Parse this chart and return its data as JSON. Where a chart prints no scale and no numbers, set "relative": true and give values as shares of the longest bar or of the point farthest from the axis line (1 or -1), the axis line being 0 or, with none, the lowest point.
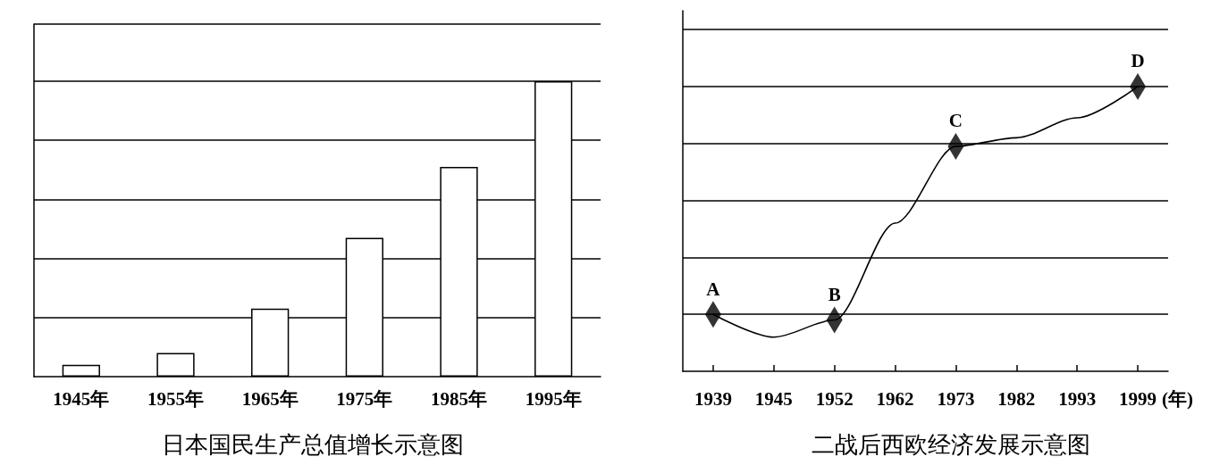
{
  "chart_data": [
    {
      "type": "bar",
      "title": "日本国民生产总值增长示意图",
      "categories": [
        "1945年",
        "1955年",
        "1965年",
        "1975年",
        "1985年",
        "1995年"
      ],
      "values": [
        0.04,
        0.08,
        0.23,
        0.47,
        0.71,
        1
      ],
      "color": "#ffffff",
      "relative": true,
      "grid": "y",
      "tick_labels": "x"
    },
    {
      "type": "line",
      "title": "二战后西欧经济发展示意图",
      "xlabel": "(年)",
      "categories": [
        "1939",
        "1945",
        "1952",
        "1962",
        "1973",
        "1982",
        "1993",
        "1999"
      ],
      "series": [
        {
          "color": "#000000",
          "values": [
            0.2,
            0.12,
            0.18,
            0.52,
            0.79,
            0.82,
            0.89,
            1
          ]
        },
        {
          "type": "scatter",
          "color": "#000000",
          "values": [
            0.2,
            null,
            0.18,
            null,
            0.79,
            null,
            null,
            1
          ],
          "marker": "diamond"
        }
      ],
      "annotations": [
        {
          "text": "A",
          "x": "1939",
          "y": 0.2
        },
        {
          "text": "B",
          "x": "1952",
          "y": 0.18
        },
        {
          "text": "C",
          "x": "1973",
          "y": 0.79
        },
        {
          "text": "D",
          "x": "1999",
          "y": 1
        }
      ],
      "relative": true,
      "grid": "y",
      "tick_labels": "x"
    }
  ]
}
